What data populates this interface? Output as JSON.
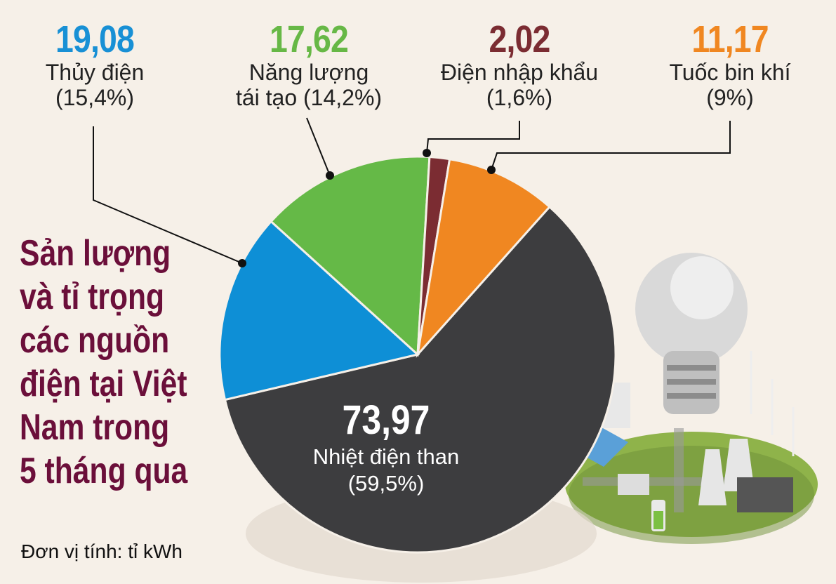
{
  "title": "Sản lượng và tỉ trọng các nguồn điện tại Việt Nam trong 5 tháng qua",
  "unit_note": "Đơn vị tính: tỉ kWh",
  "colors": {
    "title": "#6b0f3a",
    "background": "#f6f0e8"
  },
  "chart_data": {
    "type": "pie",
    "unit": "tỉ kWh",
    "slices": [
      {
        "name": "Nhiệt điện than",
        "value": 73.97,
        "value_label": "73,97",
        "percent_label": "(59,5%)",
        "color": "#3d3d3f"
      },
      {
        "name": "Thủy điện",
        "value": 19.08,
        "value_label": "19,08",
        "percent_label": "(15,4%)",
        "color": "#0e8fd6"
      },
      {
        "name": "Năng lượng tái tạo",
        "value": 17.62,
        "value_label": "17,62",
        "percent_label": "(14,2%)",
        "color": "#65b947"
      },
      {
        "name": "Điện nhập khẩu",
        "value": 2.02,
        "value_label": "2,02",
        "percent_label": "(1,6%)",
        "color": "#7b2c32"
      },
      {
        "name": "Tuốc bin khí",
        "value": 11.17,
        "value_label": "11,17",
        "percent_label": "(9%)",
        "color": "#f08721"
      }
    ],
    "callouts": {
      "hydro": {
        "value": "19,08",
        "label": "Thủy điện",
        "percent": "(15,4%)",
        "color": "#1890d5"
      },
      "renewable": {
        "value": "17,62",
        "label_line1": "Năng lượng",
        "label_line2": "tái tạo (14,2%)",
        "color": "#67b846"
      },
      "import": {
        "value": "2,02",
        "label": "Điện nhập khẩu",
        "percent": "(1,6%)",
        "color": "#7b2c32"
      },
      "gas": {
        "value": "11,17",
        "label": "Tuốc bin khí",
        "percent": "(9%)",
        "color": "#f08721"
      },
      "coal": {
        "value": "73,97",
        "label": "Nhiệt điện than",
        "percent": "(59,5%)"
      }
    }
  }
}
